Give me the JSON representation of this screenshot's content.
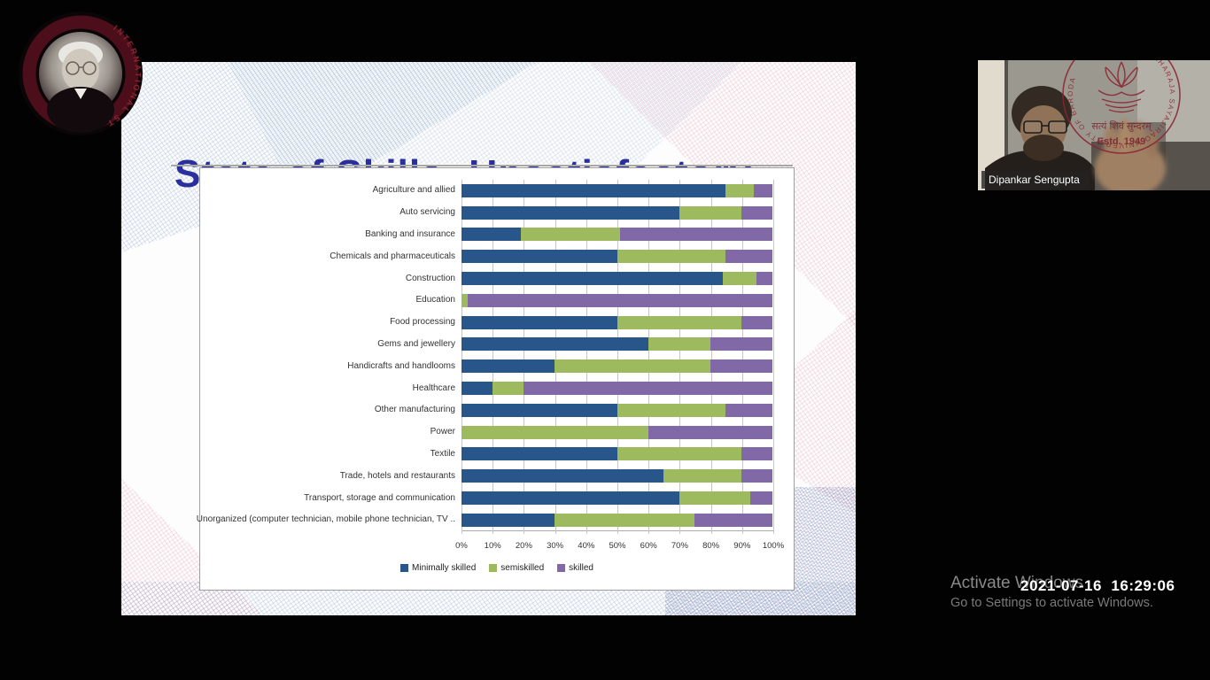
{
  "slide": {
    "title": "State of Skills- Unsatisfactory"
  },
  "chart_data": {
    "type": "bar",
    "orientation": "horizontal",
    "stacked": true,
    "unit": "percent",
    "xlim": [
      0,
      100
    ],
    "x_ticks": [
      "0%",
      "10%",
      "20%",
      "30%",
      "40%",
      "50%",
      "60%",
      "70%",
      "80%",
      "90%",
      "100%"
    ],
    "grid": true,
    "legend_position": "bottom",
    "categories": [
      "Agriculture and allied",
      "Auto servicing",
      "Banking and insurance",
      "Chemicals and pharmaceuticals",
      "Construction",
      "Education",
      "Food processing",
      "Gems and jewellery",
      "Handicrafts and handlooms",
      "Healthcare",
      "Other manufacturing",
      "Power",
      "Textile",
      "Trade, hotels and restaurants",
      "Transport, storage and communication",
      "Unorganized (computer technician, mobile phone technician, TV .."
    ],
    "series": [
      {
        "name": "Minimally skilled",
        "color": "#28568a",
        "values": [
          85,
          70,
          19,
          50,
          84,
          0,
          50,
          60,
          30,
          10,
          50,
          0,
          50,
          65,
          70,
          30
        ]
      },
      {
        "name": "semiskilled",
        "color": "#9dbb5e",
        "values": [
          9,
          20,
          32,
          35,
          11,
          2,
          40,
          20,
          50,
          10,
          35,
          60,
          40,
          25,
          23,
          45
        ]
      },
      {
        "name": "skilled",
        "color": "#8169a8",
        "values": [
          6,
          10,
          49,
          15,
          5,
          98,
          10,
          20,
          20,
          80,
          15,
          40,
          10,
          10,
          7,
          25
        ]
      }
    ]
  },
  "webcam": {
    "participant_name": "Dipankar Sengupta",
    "university_logo": {
      "ring_text": "THE MAHARAJA SAYAJIRAO UNIVERSITY OF BARODA",
      "motto": "सत्यं शिवं सुन्दरम्",
      "established": "Estd. 1949"
    }
  },
  "corner_seal": {
    "ring_text_visible": "INTERNATIONAL ST"
  },
  "system_overlay": {
    "timestamp": "2021-07-16  16:29:06",
    "activate_title": "Activate Windows",
    "activate_subtitle": "Go to Settings to activate Windows."
  }
}
